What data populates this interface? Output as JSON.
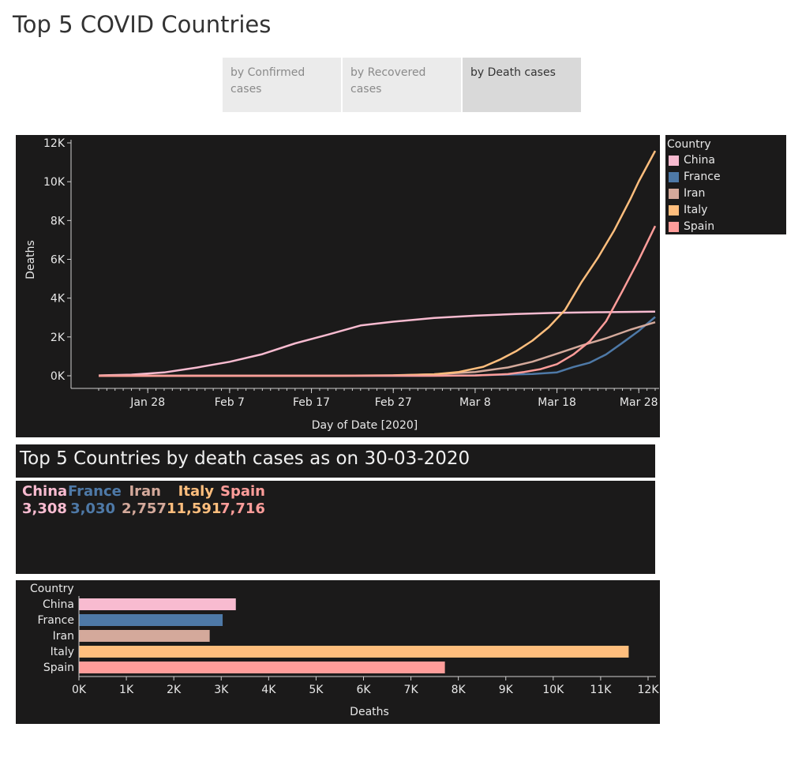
{
  "page": {
    "title": "Top 5 COVID Countries"
  },
  "tabs": [
    {
      "label": "by Confirmed cases",
      "active": false
    },
    {
      "label": "by Recovered cases",
      "active": false
    },
    {
      "label": "by Death cases",
      "active": true
    }
  ],
  "colors": {
    "China": "#f8bbd0",
    "France": "#4e79a7",
    "Iran": "#d4a99b",
    "Italy": "#ffbe7d",
    "Spain": "#ff9d9a",
    "background": "#1b1a1a"
  },
  "legend": {
    "title": "Country",
    "items": [
      "China",
      "France",
      "Iran",
      "Italy",
      "Spain"
    ]
  },
  "summary": {
    "header": "Top 5 Countries by death cases as on 30-03-2020",
    "items": [
      {
        "country": "China",
        "value": "3,308"
      },
      {
        "country": "France",
        "value": "3,030"
      },
      {
        "country": "Iran",
        "value": "2,757"
      },
      {
        "country": "Italy",
        "value": "11,591"
      },
      {
        "country": "Spain",
        "value": "7,716"
      }
    ]
  },
  "chart_data": [
    {
      "type": "line",
      "xlabel": "Day of Date [2020]",
      "ylabel": "Deaths",
      "x_ticks": [
        "Jan 28",
        "Feb 7",
        "Feb 17",
        "Feb 27",
        "Mar 8",
        "Mar 18",
        "Mar 28"
      ],
      "x_tick_dates": [
        "2020-01-28",
        "2020-02-07",
        "2020-02-17",
        "2020-02-27",
        "2020-03-08",
        "2020-03-18",
        "2020-03-28"
      ],
      "y_ticks": [
        "0K",
        "2K",
        "4K",
        "6K",
        "8K",
        "10K",
        "12K"
      ],
      "ylim": [
        0,
        12000
      ],
      "xlim": [
        "2020-01-22",
        "2020-03-30"
      ],
      "grid": false,
      "legend": "right",
      "series": [
        {
          "name": "China",
          "points": [
            [
              "2020-01-22",
              17
            ],
            [
              "2020-01-26",
              56
            ],
            [
              "2020-01-30",
              170
            ],
            [
              "2020-02-03",
              425
            ],
            [
              "2020-02-07",
              722
            ],
            [
              "2020-02-11",
              1113
            ],
            [
              "2020-02-15",
              1666
            ],
            [
              "2020-02-19",
              2118
            ],
            [
              "2020-02-23",
              2592
            ],
            [
              "2020-02-27",
              2788
            ],
            [
              "2020-03-03",
              2983
            ],
            [
              "2020-03-08",
              3097
            ],
            [
              "2020-03-13",
              3180
            ],
            [
              "2020-03-18",
              3242
            ],
            [
              "2020-03-23",
              3274
            ],
            [
              "2020-03-30",
              3308
            ]
          ]
        },
        {
          "name": "France",
          "points": [
            [
              "2020-01-22",
              0
            ],
            [
              "2020-02-15",
              1
            ],
            [
              "2020-03-01",
              2
            ],
            [
              "2020-03-08",
              19
            ],
            [
              "2020-03-12",
              61
            ],
            [
              "2020-03-15",
              91
            ],
            [
              "2020-03-18",
              175
            ],
            [
              "2020-03-20",
              450
            ],
            [
              "2020-03-22",
              674
            ],
            [
              "2020-03-24",
              1100
            ],
            [
              "2020-03-26",
              1698
            ],
            [
              "2020-03-28",
              2314
            ],
            [
              "2020-03-30",
              3030
            ]
          ]
        },
        {
          "name": "Iran",
          "points": [
            [
              "2020-01-22",
              0
            ],
            [
              "2020-02-19",
              2
            ],
            [
              "2020-02-27",
              26
            ],
            [
              "2020-03-03",
              77
            ],
            [
              "2020-03-08",
              194
            ],
            [
              "2020-03-12",
              429
            ],
            [
              "2020-03-15",
              724
            ],
            [
              "2020-03-18",
              1135
            ],
            [
              "2020-03-21",
              1556
            ],
            [
              "2020-03-24",
              1934
            ],
            [
              "2020-03-27",
              2378
            ],
            [
              "2020-03-30",
              2757
            ]
          ]
        },
        {
          "name": "Italy",
          "points": [
            [
              "2020-01-22",
              0
            ],
            [
              "2020-02-21",
              1
            ],
            [
              "2020-02-27",
              17
            ],
            [
              "2020-03-03",
              79
            ],
            [
              "2020-03-06",
              197
            ],
            [
              "2020-03-09",
              463
            ],
            [
              "2020-03-11",
              827
            ],
            [
              "2020-03-13",
              1266
            ],
            [
              "2020-03-15",
              1809
            ],
            [
              "2020-03-17",
              2503
            ],
            [
              "2020-03-19",
              3405
            ],
            [
              "2020-03-21",
              4825
            ],
            [
              "2020-03-23",
              6077
            ],
            [
              "2020-03-25",
              7503
            ],
            [
              "2020-03-27",
              9134
            ],
            [
              "2020-03-28",
              10023
            ],
            [
              "2020-03-30",
              11591
            ]
          ]
        },
        {
          "name": "Spain",
          "points": [
            [
              "2020-01-22",
              0
            ],
            [
              "2020-03-03",
              1
            ],
            [
              "2020-03-08",
              17
            ],
            [
              "2020-03-12",
              84
            ],
            [
              "2020-03-14",
              195
            ],
            [
              "2020-03-16",
              342
            ],
            [
              "2020-03-18",
              598
            ],
            [
              "2020-03-20",
              1093
            ],
            [
              "2020-03-22",
              1772
            ],
            [
              "2020-03-24",
              2808
            ],
            [
              "2020-03-26",
              4365
            ],
            [
              "2020-03-28",
              5982
            ],
            [
              "2020-03-30",
              7716
            ]
          ]
        }
      ]
    },
    {
      "type": "bar",
      "orientation": "horizontal",
      "categories_label": "Country",
      "categories": [
        "China",
        "France",
        "Iran",
        "Italy",
        "Spain"
      ],
      "values": [
        3308,
        3030,
        2757,
        11591,
        7716
      ],
      "xlabel": "Deaths",
      "x_ticks": [
        "0K",
        "1K",
        "2K",
        "3K",
        "4K",
        "5K",
        "6K",
        "7K",
        "8K",
        "9K",
        "10K",
        "11K",
        "12K"
      ],
      "xlim": [
        0,
        12000
      ]
    }
  ]
}
